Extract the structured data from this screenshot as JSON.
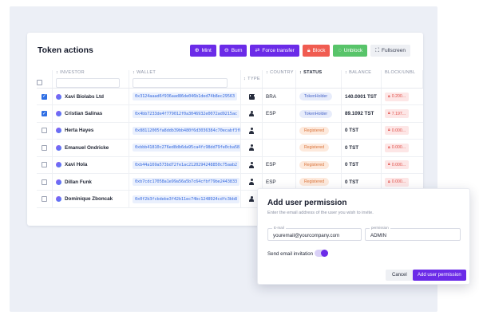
{
  "card": {
    "title": "Token actions"
  },
  "toolbar": {
    "mint": {
      "label": "Mint",
      "icon": "plus-circle-icon"
    },
    "burn": {
      "label": "Burn",
      "icon": "minus-circle-icon"
    },
    "force_transfer": {
      "label": "Force transfer",
      "icon": "transfer-icon"
    },
    "block": {
      "label": "Block",
      "icon": "lock-icon"
    },
    "unblock": {
      "label": "Unblock",
      "icon": "unlock-icon"
    },
    "fullscreen": {
      "label": "Fullscreen",
      "icon": "expand-icon"
    },
    "colors": {
      "purple": "#6b2be8",
      "red": "#f05c51",
      "green": "#58c46a"
    }
  },
  "table": {
    "headers": {
      "investor": "INVESTOR",
      "wallet": "WALLET",
      "type": "TYPE",
      "country": "COUNTRY",
      "status": "STATUS",
      "balance": "BALANCE",
      "blocked": "BLOCK/UNBL"
    },
    "rows": [
      {
        "checked": true,
        "investor": "Xavi Biolabs Ltd",
        "wallet": "0x3124aaad6f936aad86de046b1ded74b8ec29563",
        "type": "building-icon",
        "country": "BRA",
        "status": "TokenHolder",
        "status_kind": "holder",
        "balance": "140.0001 TST",
        "blocked": "0.200..."
      },
      {
        "checked": true,
        "investor": "Cristian Salinas",
        "wallet": "0x4bb7233de4f779012f0a3046932e0072ad9215ac",
        "type": "person-icon",
        "country": "ESP",
        "status": "TokenHolder",
        "status_kind": "holder",
        "balance": "89.1092 TST",
        "blocked": "7.197..."
      },
      {
        "checked": false,
        "investor": "Herta Hayes",
        "wallet": "0x88112005fa8ddb39bb480f6d3036384c70ecabf3fb",
        "type": "person-icon",
        "country": "",
        "status": "Registered",
        "status_kind": "registered",
        "balance": "0 TST",
        "blocked": "0.000..."
      },
      {
        "checked": false,
        "investor": "Emanuel Ondricke",
        "wallet": "0xbbb41810c276ed8db6da95ca4fc98dd79fe0cba58",
        "type": "person-icon",
        "country": "",
        "status": "Registered",
        "status_kind": "registered",
        "balance": "0 TST",
        "blocked": "0.000..."
      },
      {
        "checked": false,
        "investor": "Xavi Hola",
        "wallet": "0xb44a169a573bd72fe1ac2120294248850c75aab2",
        "type": "person-icon",
        "country": "ESP",
        "status": "Registered",
        "status_kind": "registered",
        "balance": "0 TST",
        "blocked": "0.000..."
      },
      {
        "checked": false,
        "investor": "Dillan Funk",
        "wallet": "0xb7cdc17058a1e99a56a5b7c64cfbf79be2443833",
        "type": "person-icon",
        "country": "ESP",
        "status": "Registered",
        "status_kind": "registered",
        "balance": "0 TST",
        "blocked": "0.000..."
      },
      {
        "checked": false,
        "investor": "Dominique Zboncak",
        "wallet": "0x0f2b3fcbdebe3f42b11ec74bc1248924cdfc3bb8",
        "type": "person-icon",
        "country": "",
        "status": "",
        "status_kind": "",
        "balance": "",
        "blocked": ""
      }
    ]
  },
  "modal": {
    "title": "Add user permission",
    "subtitle": "Enter the email address of the user you wish to invite.",
    "email_label": "E-mail",
    "email_value": "youremail@yourcompany.com",
    "permission_label": "permission",
    "permission_value": "ADMIN",
    "send_invitation_label": "Send email invitation",
    "send_invitation_on": true,
    "cancel_label": "Cancel",
    "submit_label": "Add user permission"
  }
}
